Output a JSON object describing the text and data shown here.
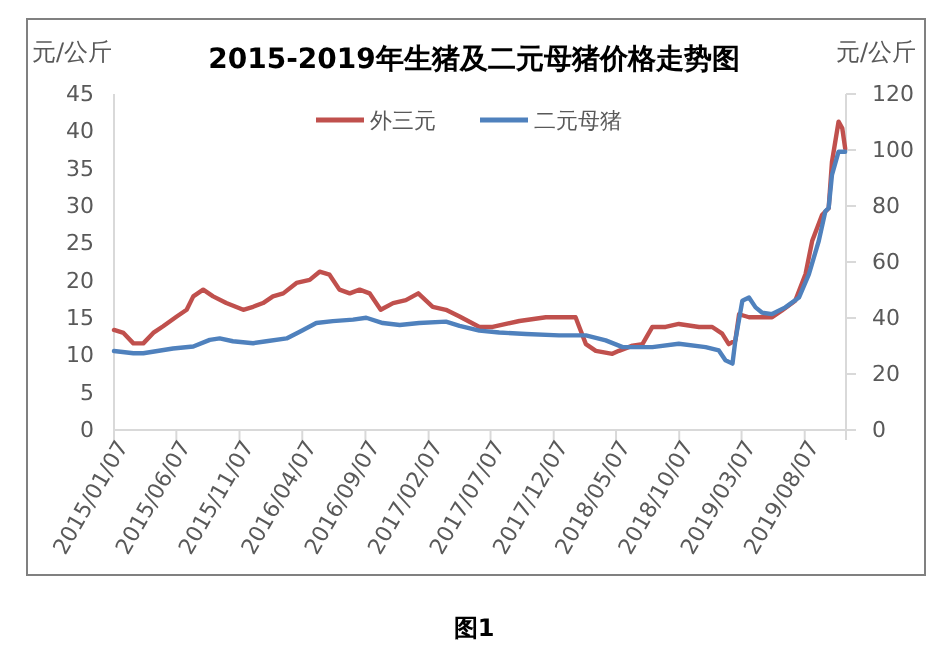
{
  "chart_data": {
    "type": "line",
    "title": "2015-2019年生猪及二元母猪价格走势图",
    "ylabel": "元/公斤",
    "y2label": "元/公斤",
    "annotations": [
      "图1"
    ],
    "xlim": [
      "2015-01-07",
      "2019-11-15"
    ],
    "xticks": [
      {
        "value": "2015-01-07",
        "label": "2015/01/07"
      },
      {
        "value": "2015-06-07",
        "label": "2015/06/07"
      },
      {
        "value": "2015-11-07",
        "label": "2015/11/07"
      },
      {
        "value": "2016-04-07",
        "label": "2016/04/07"
      },
      {
        "value": "2016-09-07",
        "label": "2016/09/07"
      },
      {
        "value": "2017-02-07",
        "label": "2017/02/07"
      },
      {
        "value": "2017-07-07",
        "label": "2017/07/07"
      },
      {
        "value": "2017-12-07",
        "label": "2017/12/07"
      },
      {
        "value": "2018-05-07",
        "label": "2018/05/07"
      },
      {
        "value": "2018-10-07",
        "label": "2018/10/07"
      },
      {
        "value": "2019-03-07",
        "label": "2019/03/07"
      },
      {
        "value": "2019-08-07",
        "label": "2019/08/07"
      }
    ],
    "ylim": [
      0,
      45
    ],
    "yticks": [
      0,
      5,
      10,
      15,
      20,
      25,
      30,
      35,
      40,
      45
    ],
    "y2lim": [
      0,
      120
    ],
    "y2ticks": [
      0,
      20,
      40,
      60,
      80,
      100,
      120
    ],
    "grid": false,
    "legend": "top",
    "marker": "none",
    "line_style": "solid",
    "series": [
      {
        "name": "外三元",
        "color": "#c0504d",
        "x": [
          "2015-01-07",
          "2015-01-30",
          "2015-02-23",
          "2015-03-19",
          "2015-04-12",
          "2015-05-06",
          "2015-06-08",
          "2015-07-02",
          "2015-07-18",
          "2015-08-11",
          "2015-09-04",
          "2015-10-06",
          "2015-11-16",
          "2015-12-10",
          "2016-01-03",
          "2016-01-27",
          "2016-02-21",
          "2016-03-24",
          "2016-04-25",
          "2016-05-19",
          "2016-06-12",
          "2016-07-06",
          "2016-07-31",
          "2016-08-24",
          "2016-09-17",
          "2016-10-14",
          "2016-11-13",
          "2016-12-14",
          "2017-01-13",
          "2017-02-17",
          "2017-03-21",
          "2017-04-23",
          "2017-06-10",
          "2017-07-12",
          "2017-09-15",
          "2017-11-18",
          "2018-01-29",
          "2018-02-07",
          "2018-02-23",
          "2018-03-19",
          "2018-04-28",
          "2018-05-14",
          "2018-06-16",
          "2018-07-10",
          "2018-08-03",
          "2018-09-04",
          "2018-10-06",
          "2018-11-24",
          "2018-12-26",
          "2019-01-19",
          "2019-02-04",
          "2019-02-20",
          "2019-03-01",
          "2019-03-25",
          "2019-04-26",
          "2019-05-20",
          "2019-06-13",
          "2019-07-15",
          "2019-08-09",
          "2019-08-25",
          "2019-09-18",
          "2019-10-04",
          "2019-10-12",
          "2019-10-28",
          "2019-11-06",
          "2019-11-13"
        ],
        "values": [
          13.4,
          13.0,
          11.6,
          11.6,
          13.0,
          13.9,
          15.2,
          16.1,
          17.9,
          18.8,
          17.9,
          17.0,
          16.1,
          16.5,
          17.0,
          17.9,
          18.3,
          19.7,
          20.1,
          21.2,
          20.8,
          18.8,
          18.3,
          18.8,
          18.3,
          16.1,
          17.0,
          17.4,
          18.3,
          16.5,
          16.1,
          15.2,
          13.8,
          13.8,
          14.6,
          15.1,
          15.1,
          13.8,
          11.5,
          10.6,
          10.2,
          10.6,
          11.3,
          11.5,
          13.8,
          13.8,
          14.2,
          13.8,
          13.8,
          12.9,
          11.5,
          12.0,
          15.5,
          15.1,
          15.1,
          15.1,
          16.0,
          17.3,
          20.9,
          25.3,
          28.8,
          29.7,
          35.9,
          41.3,
          40.4,
          37.7
        ]
      },
      {
        "name": "二元母猪",
        "color": "#4f81bd",
        "axis": "y2",
        "x": [
          "2015-01-07",
          "2015-02-23",
          "2015-03-19",
          "2015-05-30",
          "2015-07-18",
          "2015-08-27",
          "2015-09-20",
          "2015-10-22",
          "2015-12-10",
          "2016-01-11",
          "2016-02-29",
          "2016-04-01",
          "2016-05-11",
          "2016-06-20",
          "2016-08-08",
          "2016-09-09",
          "2016-10-19",
          "2016-11-29",
          "2017-01-15",
          "2017-03-21",
          "2017-04-23",
          "2017-06-10",
          "2017-07-28",
          "2017-10-01",
          "2017-12-20",
          "2018-02-23",
          "2018-04-12",
          "2018-05-23",
          "2018-08-03",
          "2018-10-06",
          "2018-12-10",
          "2019-01-11",
          "2019-01-27",
          "2019-02-13",
          "2019-02-20",
          "2019-03-09",
          "2019-03-25",
          "2019-04-10",
          "2019-04-26",
          "2019-05-20",
          "2019-06-21",
          "2019-07-24",
          "2019-08-17",
          "2019-09-10",
          "2019-09-26",
          "2019-10-04",
          "2019-10-12",
          "2019-10-28",
          "2019-11-13"
        ],
        "values": [
          28.2,
          27.4,
          27.4,
          29.1,
          29.8,
          32.2,
          32.7,
          31.7,
          31.0,
          31.7,
          32.7,
          35.1,
          38.2,
          38.9,
          39.4,
          40.1,
          38.2,
          37.5,
          38.2,
          38.7,
          37.2,
          35.5,
          34.8,
          34.3,
          33.8,
          33.8,
          32.0,
          29.6,
          29.6,
          30.8,
          29.6,
          28.4,
          24.9,
          23.7,
          32.0,
          46.2,
          47.3,
          43.8,
          41.9,
          41.4,
          43.8,
          47.3,
          55.6,
          67.5,
          78.1,
          79.3,
          91.1,
          99.4,
          99.4
        ]
      }
    ]
  }
}
